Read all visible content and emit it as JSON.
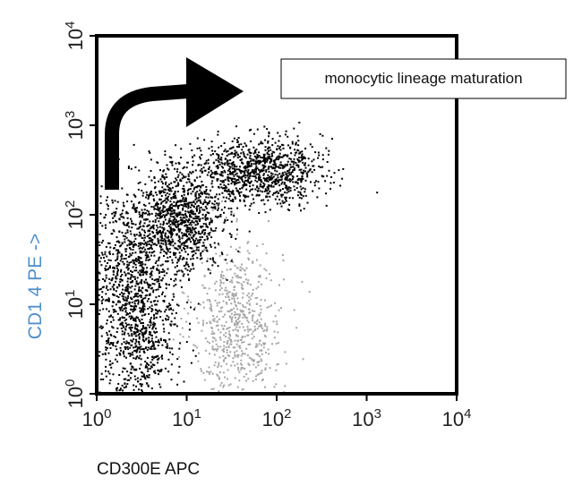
{
  "chart_data": {
    "type": "scatter",
    "title": "",
    "xlabel": "CD300E APC",
    "ylabel": "CD1 4 PE ->",
    "x_scale": "log",
    "y_scale": "log",
    "xlim": [
      1,
      10000
    ],
    "ylim": [
      1,
      10000
    ],
    "x_ticks": [
      {
        "base": "10",
        "exp": "0"
      },
      {
        "base": "10",
        "exp": "1"
      },
      {
        "base": "10",
        "exp": "2"
      },
      {
        "base": "10",
        "exp": "3"
      },
      {
        "base": "10",
        "exp": "4"
      }
    ],
    "y_ticks": [
      {
        "base": "10",
        "exp": "0"
      },
      {
        "base": "10",
        "exp": "1"
      },
      {
        "base": "10",
        "exp": "2"
      },
      {
        "base": "10",
        "exp": "3"
      },
      {
        "base": "10",
        "exp": "4"
      }
    ],
    "grid": false,
    "colors": {
      "main_population": "#000000",
      "secondary_population": "#a6a6a6",
      "ylabel": "#4f8fce",
      "arrow": "#000000"
    },
    "annotations": [
      {
        "text": "monocytic lineage maturation"
      }
    ],
    "series": [
      {
        "color": "#000000",
        "point_count": 3400,
        "clusters": [
          {
            "x_log_mean": 0.45,
            "x_log_sd": 0.22,
            "y_log_mean": 0.8,
            "y_log_sd": 0.55,
            "weight": 0.3
          },
          {
            "x_log_mean": 0.9,
            "x_log_sd": 0.25,
            "y_log_mean": 1.95,
            "y_log_sd": 0.3,
            "weight": 0.3
          },
          {
            "x_log_mean": 1.8,
            "x_log_sd": 0.35,
            "y_log_mean": 2.5,
            "y_log_sd": 0.18,
            "weight": 0.3
          },
          {
            "x_log_mean": 0.3,
            "x_log_sd": 0.25,
            "y_log_mean": 1.6,
            "y_log_sd": 0.4,
            "weight": 0.1
          }
        ]
      },
      {
        "color": "#a6a6a6",
        "point_count": 650,
        "clusters": [
          {
            "x_log_mean": 1.55,
            "x_log_sd": 0.25,
            "y_log_mean": 0.8,
            "y_log_sd": 0.45,
            "weight": 1.0
          }
        ]
      }
    ]
  }
}
